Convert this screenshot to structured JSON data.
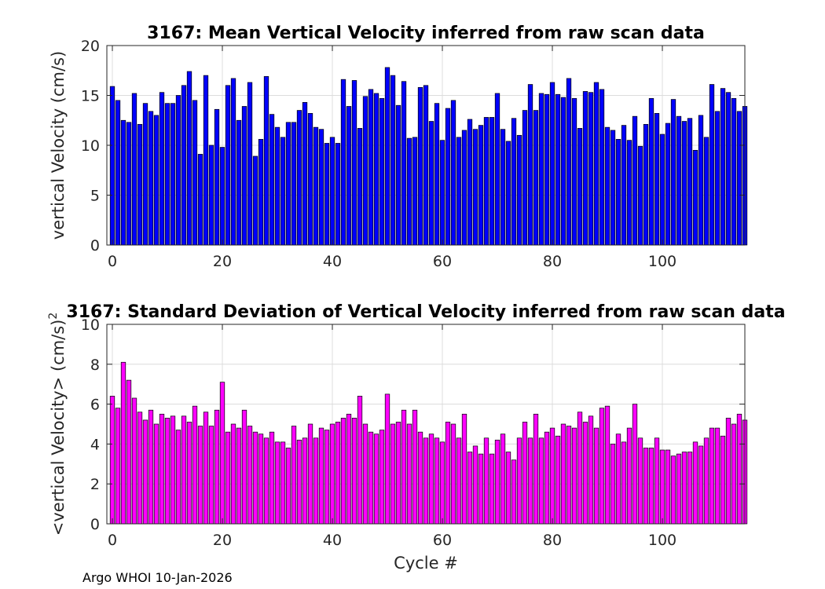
{
  "footer": "Argo WHOI 10-Jan-2026",
  "chart_data": [
    {
      "type": "bar",
      "title": "3167: Mean Vertical Velocity inferred from raw scan data",
      "xlabel": "",
      "ylabel": "vertical Velocity (cm/s)",
      "xlim": [
        -1,
        115
      ],
      "ylim": [
        0,
        20
      ],
      "xticks": [
        0,
        20,
        40,
        60,
        80,
        100
      ],
      "yticks": [
        0,
        5,
        10,
        15,
        20
      ],
      "grid": true,
      "bar_color": "#0000ff",
      "x_start": 0,
      "values": [
        15.9,
        14.5,
        12.5,
        12.3,
        15.2,
        12.1,
        14.2,
        13.4,
        13.0,
        15.3,
        14.2,
        14.2,
        15.0,
        16.0,
        17.4,
        14.5,
        9.1,
        17.0,
        10.0,
        13.6,
        9.8,
        16.0,
        16.7,
        12.5,
        13.9,
        16.3,
        8.9,
        10.6,
        16.9,
        13.1,
        11.8,
        10.8,
        12.3,
        12.3,
        13.5,
        14.3,
        13.2,
        11.8,
        11.6,
        10.2,
        10.8,
        10.2,
        16.6,
        13.9,
        16.5,
        11.7,
        14.9,
        15.6,
        15.2,
        14.7,
        17.8,
        17.0,
        14.0,
        16.4,
        10.7,
        10.8,
        15.8,
        16.0,
        12.4,
        14.2,
        10.5,
        13.7,
        14.5,
        10.8,
        11.5,
        12.6,
        11.6,
        12.0,
        12.8,
        12.8,
        15.2,
        11.6,
        10.4,
        12.7,
        11.0,
        13.5,
        16.1,
        13.5,
        15.2,
        15.1,
        16.3,
        15.1,
        14.8,
        16.7,
        14.7,
        11.7,
        15.4,
        15.3,
        16.3,
        15.6,
        11.8,
        11.5,
        10.6,
        12.0,
        10.5,
        12.9,
        9.9,
        12.1,
        14.7,
        13.2,
        11.1,
        12.2,
        14.6,
        12.9,
        12.4,
        12.7,
        9.5,
        13.0,
        10.8,
        16.1,
        13.4,
        15.7,
        15.3,
        14.7,
        13.4,
        13.9
      ]
    },
    {
      "type": "bar",
      "title": "3167: Standard Deviation of Vertical Velocity inferred from raw scan data",
      "xlabel": "Cycle #",
      "ylabel": "<vertical Velocity> (cm/s)",
      "ylabel_sup": "2",
      "xlim": [
        -1,
        115
      ],
      "ylim": [
        0,
        10
      ],
      "xticks": [
        0,
        20,
        40,
        60,
        80,
        100
      ],
      "yticks": [
        0,
        2,
        4,
        6,
        8,
        10
      ],
      "grid": true,
      "bar_color": "#ff00ff",
      "x_start": 0,
      "values": [
        6.4,
        5.8,
        8.1,
        7.2,
        6.3,
        5.6,
        5.2,
        5.7,
        5.0,
        5.5,
        5.3,
        5.4,
        4.7,
        5.4,
        5.1,
        5.9,
        4.9,
        5.6,
        4.9,
        5.7,
        7.1,
        4.6,
        5.0,
        4.8,
        5.7,
        4.9,
        4.6,
        4.5,
        4.3,
        4.6,
        4.1,
        4.1,
        3.8,
        4.9,
        4.2,
        4.3,
        5.0,
        4.3,
        4.8,
        4.7,
        5.0,
        5.1,
        5.3,
        5.5,
        5.3,
        6.4,
        5.0,
        4.6,
        4.5,
        4.7,
        6.5,
        5.0,
        5.1,
        5.7,
        5.0,
        5.7,
        4.6,
        4.3,
        4.5,
        4.3,
        4.1,
        5.1,
        5.0,
        4.3,
        5.5,
        3.6,
        3.9,
        3.5,
        4.3,
        3.5,
        4.2,
        4.5,
        3.6,
        3.2,
        4.3,
        5.1,
        4.3,
        5.5,
        4.3,
        4.6,
        4.8,
        4.4,
        5.0,
        4.9,
        4.8,
        5.6,
        5.1,
        5.4,
        4.8,
        5.8,
        5.9,
        4.0,
        4.5,
        4.1,
        4.8,
        6.0,
        4.3,
        3.8,
        3.8,
        4.3,
        3.7,
        3.7,
        3.4,
        3.5,
        3.6,
        3.6,
        4.1,
        3.9,
        4.3,
        4.8,
        4.8,
        4.4,
        5.3,
        5.0,
        5.5,
        5.2
      ]
    }
  ]
}
